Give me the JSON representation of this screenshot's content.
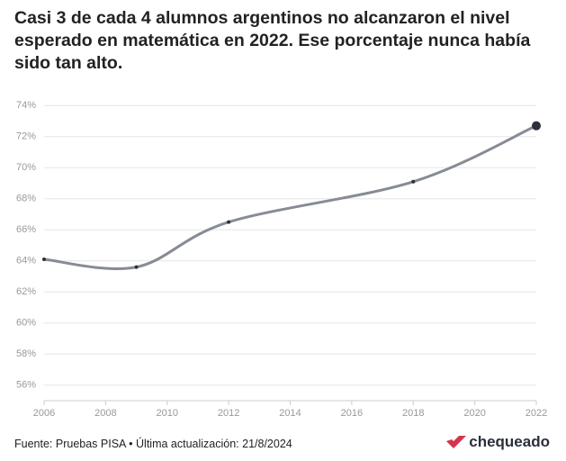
{
  "chart_data": {
    "type": "line",
    "title": "Casi 3 de cada 4 alumnos argentinos no alcanzaron el nivel esperado en matemática en 2022. Ese porcentaje nunca había sido tan alto.",
    "x": [
      2006,
      2009,
      2012,
      2018,
      2022
    ],
    "values": [
      64.1,
      63.6,
      66.5,
      69.1,
      72.7
    ],
    "color": "#868b96",
    "xlim": [
      2006,
      2022
    ],
    "xticks": [
      2006,
      2008,
      2010,
      2012,
      2014,
      2016,
      2018,
      2020,
      2022
    ],
    "ylim": [
      55,
      75
    ],
    "yticks": [
      {
        "value": 56,
        "label": "56%"
      },
      {
        "value": 58,
        "label": "58%"
      },
      {
        "value": 60,
        "label": "60%"
      },
      {
        "value": 62,
        "label": "62%"
      },
      {
        "value": 64,
        "label": "64%"
      },
      {
        "value": 66,
        "label": "66%"
      },
      {
        "value": 68,
        "label": "68%"
      },
      {
        "value": 70,
        "label": "70%"
      },
      {
        "value": 72,
        "label": "72%"
      },
      {
        "value": 74,
        "label": "74%"
      }
    ],
    "grid": true,
    "source": "Fuente: Pruebas PISA • Última actualización: 21/8/2024",
    "logo": "chequeado"
  }
}
